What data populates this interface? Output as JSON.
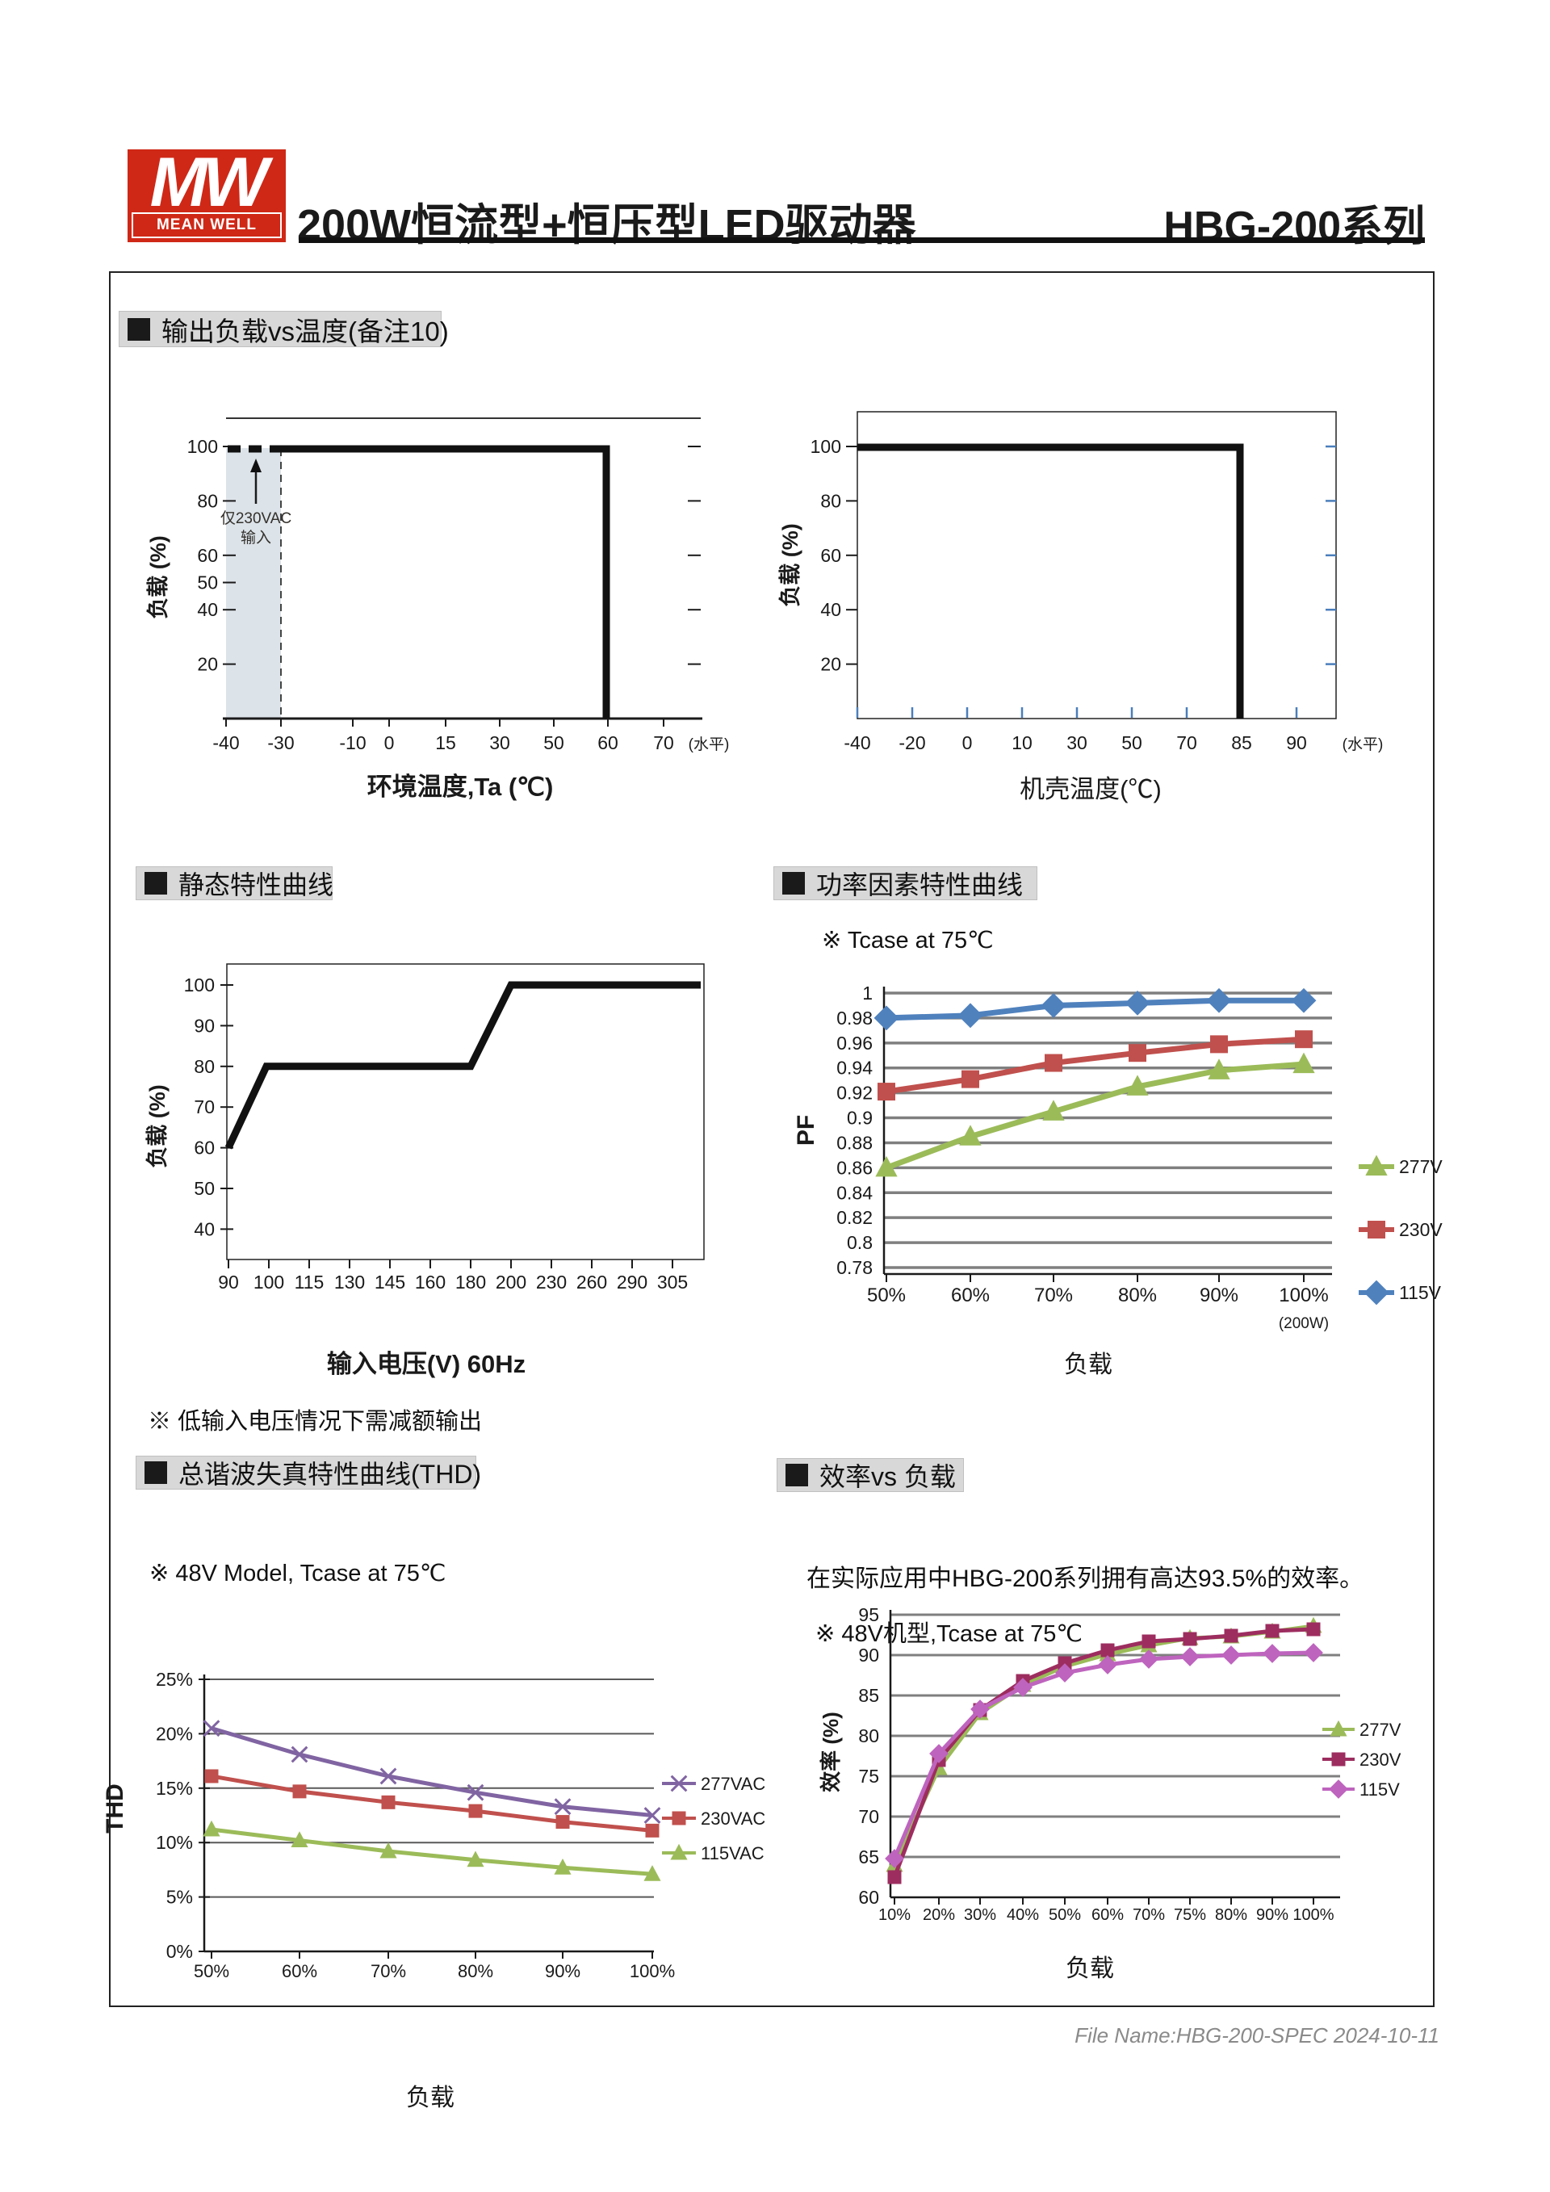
{
  "header": {
    "logo_mw": "MW",
    "logo_brand": "MEAN WELL",
    "title": "200W恒流型+恒压型LED驱动器",
    "series": "HBG-200系列"
  },
  "sections": {
    "derating": "输出负载vs温度(备注10)",
    "static": "静态特性曲线",
    "pf": "功率因素特性曲线",
    "thd": "总谐波失真特性曲线(THD)",
    "eff": "效率vs 负载"
  },
  "notes": {
    "pf_note": "※ Tcase at 75℃",
    "static_note": "※ 低输入电压情况下需减额输出",
    "thd_note": "※ 48V Model, Tcase at 75℃",
    "eff_text": "在实际应用中HBG-200系列拥有高达93.5%的效率。",
    "eff_note": "※ 48V机型,Tcase at 75℃"
  },
  "footer": {
    "file_name": "File Name:HBG-200-SPEC  2024-10-11"
  },
  "chart_data": [
    {
      "id": "output-load-vs-ambient-temperature",
      "type": "line",
      "xlabel": "环境温度,Ta (℃)",
      "ylabel": "负载 (%)",
      "x_ticks": [
        "-40",
        "-30",
        "-10",
        "0",
        "15",
        "30",
        "50",
        "60",
        "70"
      ],
      "x_axis_suffix": "(水平)",
      "y_ticks": [
        "100",
        "80",
        "60",
        "50",
        "40",
        "20"
      ],
      "y_right_ticks": [
        "100",
        "80",
        "60",
        "40",
        "20"
      ],
      "series": [
        {
          "name": "derating-boundary",
          "color": "#111111",
          "points": [
            [
              -40,
              100
            ],
            [
              60,
              100
            ],
            [
              60,
              0
            ]
          ],
          "dashed_segment": [
            [
              -40,
              100
            ],
            [
              -30,
              100
            ]
          ]
        }
      ],
      "shaded_region": {
        "x_from": "-40",
        "x_to": "-30",
        "annotation": [
          "仅230VAC",
          "输入"
        ]
      },
      "dashed_vertical_at": "-30"
    },
    {
      "id": "output-load-vs-case-temperature",
      "type": "line",
      "xlabel": "机壳温度(℃)",
      "ylabel": "负载 (%)",
      "x_ticks": [
        "-40",
        "-20",
        "0",
        "10",
        "30",
        "50",
        "70",
        "85",
        "90"
      ],
      "x_axis_suffix": "(水平)",
      "y_ticks": [
        "100",
        "80",
        "60",
        "40",
        "20"
      ],
      "series": [
        {
          "name": "derating-boundary",
          "color": "#111111",
          "points": [
            [
              -40,
              100
            ],
            [
              85,
              100
            ],
            [
              85,
              0
            ]
          ]
        }
      ]
    },
    {
      "id": "static-characteristic-curve",
      "type": "line",
      "xlabel": "输入电压(V) 60Hz",
      "ylabel": "负载 (%)",
      "x_ticks": [
        "90",
        "100",
        "115",
        "130",
        "145",
        "160",
        "180",
        "200",
        "230",
        "260",
        "290",
        "305"
      ],
      "y_ticks": [
        "100",
        "90",
        "80",
        "70",
        "60",
        "50",
        "40"
      ],
      "series": [
        {
          "name": "static-load-curve",
          "color": "#111111",
          "points": [
            [
              90,
              60
            ],
            [
              100,
              80
            ],
            [
              180,
              80
            ],
            [
              200,
              100
            ],
            [
              305,
              100
            ]
          ]
        }
      ]
    },
    {
      "id": "power-factor-characteristic",
      "type": "line",
      "xlabel": "负载",
      "ylabel": "PF",
      "x_note": "(200W)",
      "categories": [
        "50%",
        "60%",
        "70%",
        "80%",
        "90%",
        "100%"
      ],
      "y_ticks": [
        "1",
        "0.98",
        "0.96",
        "0.94",
        "0.92",
        "0.9",
        "0.88",
        "0.86",
        "0.84",
        "0.82",
        "0.8",
        "0.78"
      ],
      "ylim": [
        0.78,
        1.0
      ],
      "series": [
        {
          "name": "277V",
          "color": "#9BBB59",
          "marker": "triangle",
          "values": [
            0.86,
            0.885,
            0.905,
            0.925,
            0.938,
            0.943
          ]
        },
        {
          "name": "230V",
          "color": "#C0504D",
          "marker": "square",
          "values": [
            0.921,
            0.931,
            0.944,
            0.952,
            0.959,
            0.963
          ]
        },
        {
          "name": "115V",
          "color": "#4F81BD",
          "marker": "diamond",
          "values": [
            0.98,
            0.982,
            0.99,
            0.992,
            0.994,
            0.994
          ]
        }
      ],
      "legend": [
        "277V",
        "230V",
        "115V"
      ]
    },
    {
      "id": "thd-characteristic",
      "type": "line",
      "xlabel": "负载",
      "ylabel": "THD",
      "categories": [
        "50%",
        "60%",
        "70%",
        "80%",
        "90%",
        "100%"
      ],
      "y_ticks": [
        "25%",
        "20%",
        "15%",
        "10%",
        "5%",
        "0%"
      ],
      "ylim": [
        0,
        25
      ],
      "series": [
        {
          "name": "277VAC",
          "color": "#8064A2",
          "marker": "x",
          "values": [
            20.5,
            18.1,
            16.1,
            14.6,
            13.3,
            12.5
          ]
        },
        {
          "name": "230VAC",
          "color": "#C0504D",
          "marker": "square",
          "values": [
            16.1,
            14.7,
            13.7,
            12.9,
            11.9,
            11.1
          ]
        },
        {
          "name": "115VAC",
          "color": "#9BBB59",
          "marker": "triangle",
          "values": [
            11.2,
            10.2,
            9.2,
            8.4,
            7.7,
            7.1
          ]
        }
      ],
      "legend": [
        "277VAC",
        "230VAC",
        "115VAC"
      ]
    },
    {
      "id": "efficiency-vs-load",
      "type": "line",
      "xlabel": "负载",
      "ylabel": "效率 (%)",
      "categories": [
        "10%",
        "20%",
        "30%",
        "40%",
        "50%",
        "60%",
        "70%",
        "75%",
        "80%",
        "90%",
        "100%"
      ],
      "y_ticks": [
        "95",
        "90",
        "85",
        "80",
        "75",
        "70",
        "65",
        "60"
      ],
      "ylim": [
        60,
        95
      ],
      "series": [
        {
          "name": "277V",
          "color": "#9BBB59",
          "marker": "triangle",
          "values": [
            64.0,
            76.0,
            82.8,
            86.3,
            88.6,
            90.1,
            91.2,
            92.1,
            92.3,
            92.9,
            93.6
          ]
        },
        {
          "name": "230V",
          "color": "#9D2D5F",
          "marker": "square",
          "values": [
            62.5,
            77.0,
            83.2,
            86.8,
            89.0,
            90.6,
            91.7,
            92.0,
            92.4,
            93.0,
            93.2
          ]
        },
        {
          "name": "115V",
          "color": "#BE64BE",
          "marker": "diamond",
          "values": [
            64.8,
            77.8,
            83.3,
            86.0,
            87.8,
            88.8,
            89.5,
            89.8,
            90.0,
            90.2,
            90.3
          ]
        }
      ],
      "legend": [
        "277V",
        "230V",
        "115V"
      ]
    }
  ]
}
